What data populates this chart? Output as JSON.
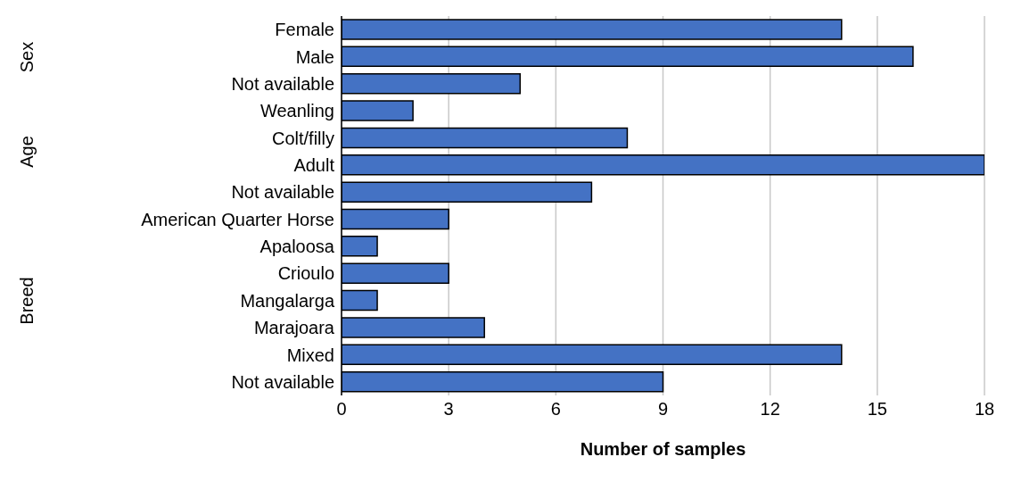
{
  "chart_data": {
    "type": "bar",
    "orientation": "horizontal",
    "xlabel": "Number of samples",
    "categories": [
      "Female",
      "Male",
      "Not available",
      "Weanling",
      "Colt/filly",
      "Adult",
      "Not available",
      "American Quarter Horse",
      "Apaloosa",
      "Crioulo",
      "Mangalarga",
      "Marajoara",
      "Mixed",
      "Not available"
    ],
    "values": [
      14,
      16,
      5,
      2,
      8,
      18,
      7,
      3,
      1,
      3,
      1,
      4,
      14,
      9
    ],
    "color": "#4472c4",
    "xlim": [
      0,
      18
    ],
    "xticks": [
      0,
      3,
      6,
      9,
      12,
      15,
      18
    ],
    "grid": "x",
    "annotations": [
      "Sex",
      "Age",
      "Breed"
    ]
  }
}
